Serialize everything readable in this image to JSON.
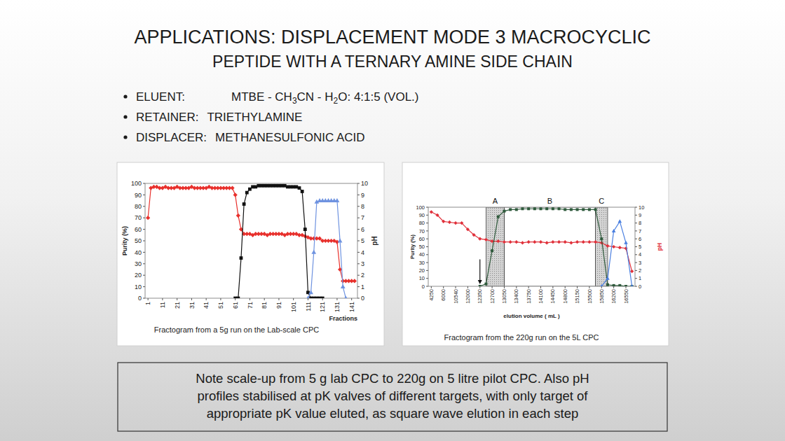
{
  "header": {
    "title_lines": [
      "APPLICATIONS: DISPLACEMENT MODE 3 MACROCYCLIC",
      "PEPTIDE WITH A TERNARY AMINE SIDE CHAIN"
    ]
  },
  "bullets": [
    {
      "label": "ELUENT:",
      "value": [
        {
          "text": "MTBE - CH"
        },
        {
          "text": "3",
          "sub": true
        },
        {
          "text": "CN - H"
        },
        {
          "text": "2",
          "sub": true
        },
        {
          "text": "O: 4:1:5 (VOL.)"
        }
      ]
    },
    {
      "label": "RETAINER:",
      "value": [
        {
          "text": "TRIETHYLAMINE"
        }
      ]
    },
    {
      "label": "DISPLACER:",
      "value": [
        {
          "text": "METHANESULFONIC ACID"
        }
      ]
    }
  ],
  "chart_data": [
    {
      "type": "line",
      "title": "Fractogram from a 5g run on the Lab-scale CPC",
      "x_label": "Fractions",
      "y_label": "Purity (%)",
      "y2_label": "pH",
      "grid": false,
      "x": [
        1,
        3,
        5,
        7,
        9,
        11,
        13,
        15,
        17,
        19,
        21,
        23,
        25,
        27,
        29,
        31,
        33,
        35,
        37,
        39,
        41,
        43,
        45,
        47,
        49,
        51,
        53,
        55,
        57,
        59,
        61,
        63,
        65,
        67,
        69,
        71,
        73,
        75,
        77,
        79,
        81,
        83,
        85,
        87,
        89,
        91,
        93,
        95,
        97,
        99,
        101,
        103,
        105,
        107,
        109,
        111,
        113,
        115,
        117,
        119,
        121,
        123,
        125,
        127,
        129,
        131,
        133,
        135,
        137,
        139,
        141,
        143
      ],
      "xlim": [
        -1,
        145
      ],
      "xticks": [
        1,
        11,
        21,
        31,
        41,
        51,
        61,
        71,
        81,
        91,
        101,
        111,
        121,
        131,
        141
      ],
      "ylim": [
        0,
        100
      ],
      "yticks": [
        0,
        10,
        20,
        30,
        40,
        50,
        60,
        70,
        80,
        90,
        100
      ],
      "y2lim": [
        0,
        10
      ],
      "y2ticks": [
        0,
        1,
        2,
        3,
        4,
        5,
        6,
        7,
        8,
        9,
        10
      ],
      "series": [
        {
          "color": "#e8302c",
          "marker": "diamond",
          "axis": "y2",
          "values": [
            7.0,
            9.6,
            9.7,
            9.7,
            9.6,
            9.6,
            9.7,
            9.6,
            9.6,
            9.6,
            9.7,
            9.6,
            9.6,
            9.6,
            9.6,
            9.7,
            9.6,
            9.6,
            9.6,
            9.6,
            9.6,
            9.7,
            9.6,
            9.6,
            9.6,
            9.6,
            9.6,
            9.6,
            9.6,
            9.6,
            9.0,
            7.2,
            6.0,
            5.6,
            5.6,
            5.6,
            5.5,
            5.6,
            5.6,
            5.6,
            5.6,
            5.5,
            5.6,
            5.6,
            5.6,
            5.6,
            5.6,
            5.5,
            5.6,
            5.6,
            5.6,
            5.6,
            5.5,
            5.5,
            5.4,
            5.3,
            5.2,
            5.2,
            5.2,
            5.2,
            5.0,
            5.0,
            5.0,
            5.0,
            5.0,
            4.9,
            2.5,
            1.5,
            1.5,
            1.5,
            1.5,
            1.5
          ]
        },
        {
          "color": "#111111",
          "marker": "square",
          "values": [
            null,
            null,
            null,
            null,
            null,
            null,
            null,
            null,
            null,
            null,
            null,
            null,
            null,
            null,
            null,
            null,
            null,
            null,
            null,
            null,
            null,
            null,
            null,
            null,
            null,
            null,
            null,
            null,
            null,
            null,
            0,
            0,
            35,
            82,
            92,
            95,
            97,
            97,
            98,
            98,
            98,
            98,
            98,
            98,
            98,
            98,
            98,
            98,
            97,
            97,
            97,
            97,
            96,
            93,
            60,
            5,
            0,
            0,
            0,
            0,
            0,
            null,
            null,
            null,
            null,
            null,
            null,
            null,
            null,
            null,
            null,
            null
          ]
        },
        {
          "color": "#6f93e0",
          "marker": "triangle",
          "values": [
            null,
            null,
            null,
            null,
            null,
            null,
            null,
            null,
            null,
            null,
            null,
            null,
            null,
            null,
            null,
            null,
            null,
            null,
            null,
            null,
            null,
            null,
            null,
            null,
            null,
            null,
            null,
            null,
            null,
            null,
            null,
            null,
            null,
            null,
            null,
            null,
            null,
            null,
            null,
            null,
            null,
            null,
            null,
            null,
            null,
            null,
            null,
            null,
            null,
            null,
            null,
            null,
            null,
            null,
            null,
            0,
            5,
            40,
            84,
            85,
            85,
            85,
            85,
            85,
            85,
            85,
            50,
            10,
            0,
            null,
            null,
            null
          ]
        }
      ]
    },
    {
      "type": "line",
      "title": "Fractogram from the 220g run on the 5L CPC",
      "x_label": "elution volume ( mL )",
      "y_label": "Purity (%)",
      "y2_label": "pH",
      "grid": false,
      "categories": [
        "4250",
        null,
        "6000",
        null,
        "10540",
        null,
        "12000",
        null,
        "12350",
        null,
        "12700",
        null,
        "13050",
        null,
        "13400",
        null,
        "13750",
        null,
        "14100",
        null,
        "14450",
        null,
        "14800",
        null,
        "15150",
        null,
        "15500",
        null,
        "15850",
        null,
        "16200",
        null,
        "16550",
        null
      ],
      "ylim": [
        0,
        100
      ],
      "yticks": [
        0,
        10,
        20,
        30,
        40,
        50,
        60,
        70,
        80,
        90,
        100
      ],
      "y2lim": [
        0,
        10
      ],
      "y2ticks": [
        0,
        1,
        2,
        3,
        4,
        5,
        6,
        7,
        8,
        9,
        10
      ],
      "regions": [
        {
          "label": "A",
          "start_index": 9,
          "end_index": 12,
          "shaded": true
        },
        {
          "label": "B",
          "start_index": 12,
          "end_index": 27,
          "shaded": false
        },
        {
          "label": "C",
          "start_index": 27,
          "end_index": 29,
          "shaded": true
        }
      ],
      "arrow": {
        "index": 8
      },
      "series": [
        {
          "color": "#e0303a",
          "marker": "diamond",
          "axis": "y2",
          "values": [
            9.4,
            9.0,
            8.2,
            8.1,
            8.0,
            8.0,
            7.2,
            6.5,
            6.0,
            5.9,
            5.7,
            5.7,
            5.6,
            5.6,
            5.6,
            5.5,
            5.6,
            5.6,
            5.6,
            5.5,
            5.6,
            5.6,
            5.6,
            5.5,
            5.6,
            5.6,
            5.6,
            5.6,
            5.5,
            5.1,
            5.0,
            4.9,
            4.8,
            1.9
          ]
        },
        {
          "color": "#2f5a3c",
          "marker": "square",
          "values": [
            null,
            null,
            null,
            null,
            null,
            null,
            null,
            null,
            0,
            3,
            45,
            88,
            95,
            97,
            97,
            98,
            98,
            98,
            98,
            98,
            98,
            98,
            97,
            97,
            97,
            97,
            97,
            97,
            60,
            2,
            1,
            1,
            0,
            0
          ]
        },
        {
          "color": "#4a7fe0",
          "marker": "triangle",
          "values": [
            null,
            null,
            null,
            null,
            null,
            null,
            null,
            null,
            null,
            null,
            null,
            null,
            null,
            null,
            null,
            null,
            null,
            null,
            null,
            null,
            null,
            null,
            null,
            null,
            null,
            null,
            null,
            null,
            0,
            10,
            70,
            82,
            55,
            0
          ]
        }
      ]
    }
  ],
  "note": {
    "lines": [
      "Note scale-up from 5 g lab CPC to 220g on 5 litre pilot CPC. Also pH",
      "profiles stabilised at pK valves of different targets, with only target of",
      "appropriate pK value eluted, as square wave elution in each step"
    ]
  }
}
